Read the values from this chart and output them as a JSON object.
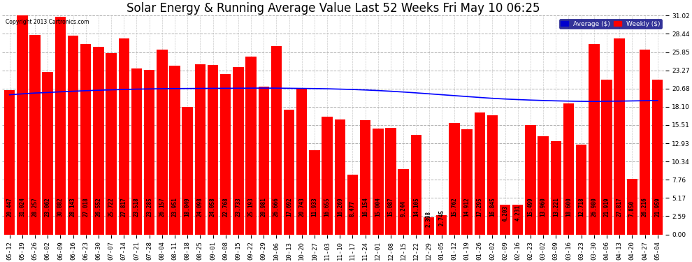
{
  "title": "Solar Energy & Running Average Value Last 52 Weeks Fri May 10 06:25",
  "copyright": "Copyright 2013 Cartronics.com",
  "categories": [
    "05-12",
    "05-19",
    "05-26",
    "06-02",
    "06-09",
    "06-16",
    "06-23",
    "06-30",
    "07-07",
    "07-14",
    "07-21",
    "07-28",
    "08-04",
    "08-11",
    "08-18",
    "08-25",
    "09-01",
    "09-08",
    "09-15",
    "09-22",
    "09-29",
    "10-06",
    "10-13",
    "10-20",
    "10-27",
    "11-03",
    "11-10",
    "11-17",
    "11-24",
    "12-01",
    "12-08",
    "12-15",
    "12-22",
    "12-29",
    "01-05",
    "01-12",
    "01-19",
    "01-26",
    "02-02",
    "02-09",
    "02-16",
    "02-23",
    "03-02",
    "03-09",
    "03-16",
    "03-23",
    "03-30",
    "04-06",
    "04-13",
    "04-20",
    "04-27",
    "05-04"
  ],
  "weekly_values": [
    20.447,
    31.024,
    28.257,
    23.062,
    30.882,
    28.143,
    27.018,
    26.552,
    25.722,
    27.817,
    23.518,
    23.285,
    26.157,
    23.951,
    18.049,
    24.098,
    24.058,
    22.768,
    23.733,
    25.193,
    20.981,
    26.666,
    17.692,
    20.743,
    11.933,
    16.655,
    16.269,
    8.477,
    16.154,
    15.004,
    15.087,
    9.244,
    14.105,
    2.398,
    2.745,
    15.762,
    14.912,
    17.295,
    16.845,
    4.203,
    4.231,
    15.499,
    13.96,
    13.221,
    18.6,
    12.718,
    26.98,
    21.919,
    27.817,
    7.85,
    26.216,
    21.959
  ],
  "avg_values": [
    19.8,
    19.93,
    20.05,
    20.12,
    20.22,
    20.3,
    20.38,
    20.44,
    20.5,
    20.55,
    20.6,
    20.63,
    20.66,
    20.68,
    20.69,
    20.7,
    20.71,
    20.72,
    20.73,
    20.74,
    20.75,
    20.74,
    20.72,
    20.7,
    20.68,
    20.65,
    20.6,
    20.55,
    20.48,
    20.4,
    20.3,
    20.19,
    20.07,
    19.94,
    19.81,
    19.68,
    19.55,
    19.42,
    19.3,
    19.2,
    19.12,
    19.05,
    18.99,
    18.94,
    18.9,
    18.87,
    18.85,
    18.88,
    18.9,
    18.93,
    18.96,
    18.99
  ],
  "bar_color": "#ff0000",
  "avg_line_color": "#0000ff",
  "background_color": "#ffffff",
  "plot_bg_color": "#ffffff",
  "title_fontsize": 12,
  "tick_fontsize": 6.5,
  "label_fontsize": 5.5,
  "ylim": [
    0.0,
    31.02
  ],
  "yticks": [
    0.0,
    2.59,
    5.17,
    7.76,
    10.34,
    12.93,
    15.51,
    18.1,
    20.68,
    23.27,
    25.85,
    28.44,
    31.02
  ],
  "legend_avg_color": "#0000cd",
  "legend_weekly_color": "#ff0000",
  "legend_avg_text": "Average ($)",
  "legend_weekly_text": "Weekly ($)"
}
